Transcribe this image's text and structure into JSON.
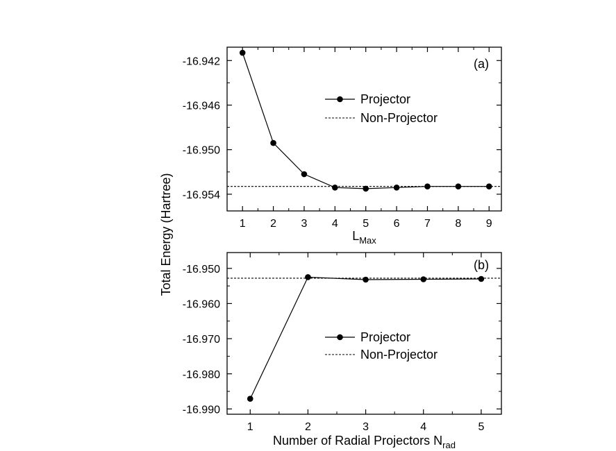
{
  "ylabel": "Total Energy (Hartree)",
  "chart_data": [
    {
      "type": "line",
      "panel_label": "(a)",
      "xlabel_main": "L",
      "xlabel_sub": "Max",
      "x": [
        1,
        2,
        3,
        4,
        5,
        6,
        7,
        8,
        9
      ],
      "xticks": [
        "1",
        "2",
        "3",
        "4",
        "5",
        "6",
        "7",
        "8",
        "9"
      ],
      "xlim": [
        0.5,
        9.4
      ],
      "ylim": [
        -16.9555,
        -16.9408
      ],
      "yticks": [
        "-16.942",
        "-16.946",
        "-16.950",
        "-16.954"
      ],
      "ytick_values": [
        -16.942,
        -16.946,
        -16.95,
        -16.954
      ],
      "series": [
        {
          "name": "Projector",
          "style": "solid-markers",
          "values": [
            -16.9413,
            -16.9494,
            -16.9522,
            -16.9534,
            -16.9535,
            -16.9534,
            -16.9533,
            -16.9533,
            -16.9533
          ]
        },
        {
          "name": "Non-Projector",
          "style": "dashed",
          "value": -16.9533
        }
      ],
      "legend_position": "upper-right"
    },
    {
      "type": "line",
      "panel_label": "(b)",
      "xlabel_main": "Number of Radial Projectors N",
      "xlabel_sub": "rad",
      "x": [
        1,
        2,
        3,
        4,
        5
      ],
      "xticks": [
        "1",
        "2",
        "3",
        "4",
        "5"
      ],
      "xlim": [
        0.6,
        5.35
      ],
      "ylim": [
        -16.9915,
        -16.9455
      ],
      "yticks": [
        "-16.950",
        "-16.960",
        "-16.970",
        "-16.980",
        "-16.990"
      ],
      "ytick_values": [
        -16.95,
        -16.96,
        -16.97,
        -16.98,
        -16.99
      ],
      "series": [
        {
          "name": "Projector",
          "style": "solid-markers",
          "values": [
            -16.9871,
            -16.9525,
            -16.9532,
            -16.9531,
            -16.953
          ]
        },
        {
          "name": "Non-Projector",
          "style": "dashed",
          "value": -16.9528
        }
      ],
      "legend_position": "middle-right"
    }
  ]
}
